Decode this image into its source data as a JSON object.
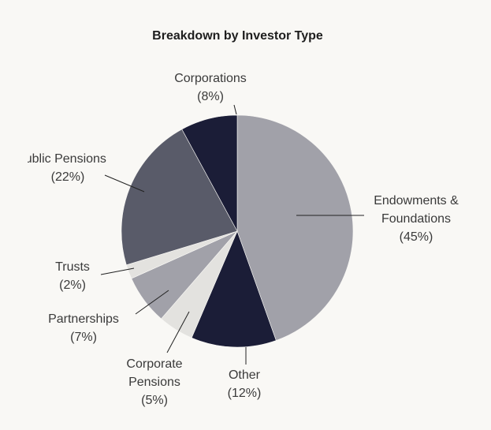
{
  "chart_data": {
    "type": "pie",
    "title": "Breakdown by Investor Type",
    "categories": [
      "Endowments &\nFoundations",
      "Other",
      "Corporate\nPensions",
      "Partnerships",
      "Trusts",
      "Public Pensions",
      "Corporations"
    ],
    "values": [
      45,
      12,
      5,
      7,
      2,
      22,
      8
    ],
    "value_labels": [
      "(45%)",
      "(12%)",
      "(5%)",
      "(7%)",
      "(2%)",
      "(22%)",
      "(8%)"
    ],
    "colors": [
      "#a1a1a9",
      "#1b1d37",
      "#e3e2df",
      "#a1a1a9",
      "#e3e2df",
      "#595b69",
      "#1b1d37"
    ]
  }
}
